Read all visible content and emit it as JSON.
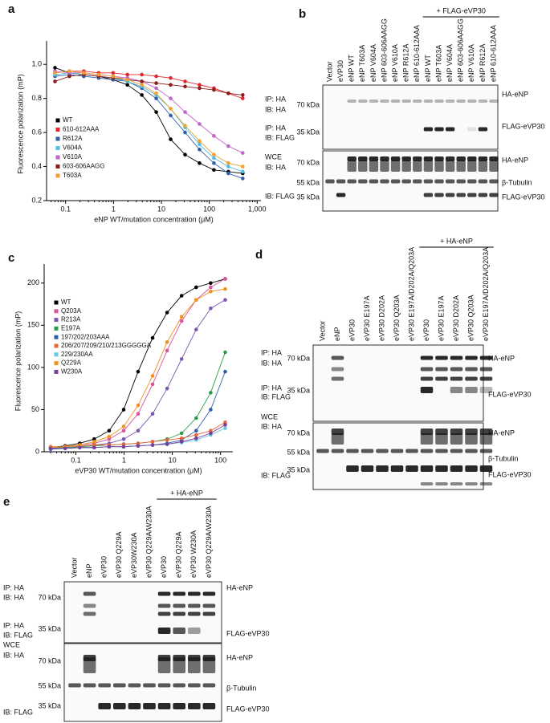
{
  "panel_labels": [
    "a",
    "b",
    "c",
    "d",
    "e"
  ],
  "chart_data": [
    {
      "type": "line",
      "xlabel": "eNP WT/mutation concentration (μM)",
      "ylabel": "Fluorescence polarization (mP)",
      "log_x": true,
      "xlim": [
        0.04,
        1200
      ],
      "ylim": [
        0.2,
        1.1
      ],
      "xticks": [
        0.1,
        1,
        10,
        100,
        {
          "value": 1000,
          "label": "1,000"
        }
      ],
      "yticks": [
        0.2,
        0.4,
        0.6,
        0.8,
        {
          "value": 1,
          "label": "1.0"
        }
      ],
      "x": [
        0.06,
        0.12,
        0.24,
        0.49,
        0.98,
        1.95,
        3.9,
        7.8,
        15.6,
        31.25,
        62.5,
        125,
        250,
        500
      ],
      "series": [
        {
          "name": "WT",
          "color": "#000000",
          "values": [
            0.98,
            0.95,
            0.94,
            0.93,
            0.91,
            0.88,
            0.82,
            0.72,
            0.56,
            0.47,
            0.42,
            0.38,
            0.37,
            0.36
          ]
        },
        {
          "name": "610-612AAA",
          "color": "#e3262b",
          "values": [
            0.95,
            0.96,
            0.96,
            0.95,
            0.95,
            0.94,
            0.94,
            0.93,
            0.92,
            0.9,
            0.88,
            0.86,
            0.83,
            0.8
          ]
        },
        {
          "name": "R612A",
          "color": "#2f5fa8",
          "values": [
            0.93,
            0.94,
            0.93,
            0.92,
            0.91,
            0.9,
            0.86,
            0.8,
            0.7,
            0.6,
            0.5,
            0.42,
            0.36,
            0.33
          ]
        },
        {
          "name": "V604A",
          "color": "#4fc0e0",
          "values": [
            0.94,
            0.95,
            0.94,
            0.93,
            0.92,
            0.9,
            0.87,
            0.82,
            0.74,
            0.63,
            0.53,
            0.45,
            0.4,
            0.37
          ]
        },
        {
          "name": "V610A",
          "color": "#c064c8",
          "values": [
            0.96,
            0.95,
            0.95,
            0.94,
            0.93,
            0.92,
            0.9,
            0.86,
            0.8,
            0.72,
            0.65,
            0.58,
            0.52,
            0.48
          ]
        },
        {
          "name": "603-606AAGG",
          "color": "#8b1a1a",
          "values": [
            0.9,
            0.93,
            0.94,
            0.93,
            0.92,
            0.91,
            0.9,
            0.89,
            0.88,
            0.87,
            0.86,
            0.85,
            0.83,
            0.82
          ]
        },
        {
          "name": "T603A",
          "color": "#f0a030",
          "values": [
            0.95,
            0.96,
            0.95,
            0.94,
            0.93,
            0.91,
            0.88,
            0.83,
            0.74,
            0.64,
            0.55,
            0.47,
            0.42,
            0.4
          ]
        }
      ]
    },
    {
      "type": "line",
      "xlabel": "eVP30 WT/mutation concentration (μM)",
      "ylabel": "Fluorescence polarization (mP)",
      "log_x": true,
      "xlim": [
        0.022,
        180
      ],
      "ylim": [
        0,
        215
      ],
      "xticks": [
        0.1,
        1,
        10,
        100
      ],
      "yticks": [
        0,
        50,
        100,
        150,
        200
      ],
      "x": [
        0.03,
        0.06,
        0.12,
        0.24,
        0.49,
        0.98,
        1.95,
        3.9,
        7.8,
        15.6,
        31.25,
        62.5,
        125
      ],
      "series": [
        {
          "name": "WT",
          "color": "#000000",
          "values": [
            5,
            7,
            10,
            15,
            25,
            50,
            95,
            135,
            165,
            185,
            195,
            200,
            205
          ]
        },
        {
          "name": "Q203A",
          "color": "#d8559e",
          "values": [
            5,
            6,
            8,
            10,
            15,
            25,
            45,
            80,
            120,
            155,
            180,
            195,
            205
          ]
        },
        {
          "name": "R213A",
          "color": "#7b58b0",
          "values": [
            4,
            5,
            6,
            8,
            10,
            15,
            25,
            45,
            75,
            110,
            145,
            170,
            180
          ]
        },
        {
          "name": "E197A",
          "color": "#2a9d4a",
          "values": [
            5,
            5,
            6,
            7,
            8,
            9,
            10,
            12,
            15,
            22,
            40,
            70,
            118
          ]
        },
        {
          "name": "197/202/203AAA",
          "color": "#2f5fa8",
          "values": [
            3,
            4,
            5,
            5,
            6,
            6,
            7,
            8,
            10,
            14,
            25,
            50,
            95
          ]
        },
        {
          "name": "206/207/209/210/213GGGGGA",
          "color": "#e8663a",
          "values": [
            6,
            6,
            7,
            8,
            8,
            9,
            10,
            12,
            14,
            16,
            20,
            25,
            35
          ]
        },
        {
          "name": "229/230AA",
          "color": "#6cc6e0",
          "values": [
            4,
            4,
            5,
            5,
            6,
            6,
            7,
            8,
            9,
            11,
            14,
            20,
            28
          ]
        },
        {
          "name": "Q229A",
          "color": "#f0901e",
          "values": [
            5,
            6,
            8,
            12,
            18,
            30,
            55,
            90,
            130,
            160,
            180,
            190,
            193
          ]
        },
        {
          "name": "W230A",
          "color": "#7a3d9a",
          "values": [
            4,
            4,
            5,
            5,
            6,
            6,
            7,
            8,
            9,
            12,
            16,
            22,
            32
          ]
        }
      ]
    }
  ],
  "blots": [
    {
      "lanes": [
        "Vector",
        "eVP30",
        "eNP WT",
        "eNP T603A",
        "eNP V604A",
        "eNP 603-606AAGG",
        "eNP V610A",
        "eNP R612A",
        "eNP 610-612AAA",
        "eNP WT",
        "eNP T603A",
        "eNP V604A",
        "eNP 603-606AAGG",
        "eNP V610A",
        "eNP R612A",
        "eNP 610-612AAA"
      ],
      "group_label": "+ FLAG-eVP30",
      "left_labels": [
        "IP: HA",
        "IB: HA",
        "IP: HA",
        "IB: FLAG",
        "WCE",
        "IB: HA",
        "IB: FLAG"
      ],
      "markers": [
        "70 kDa",
        "35 kDa",
        "70 kDa",
        "55 kDa",
        "35 kDa"
      ],
      "right_labels": [
        "HA-eNP",
        "FLAG-eVP30",
        "HA-eNP",
        "β-Tubulin",
        "FLAG-eVP30"
      ]
    },
    {
      "lanes": [
        "Vector",
        "eNP",
        "eVP30",
        "eVP30 E197A",
        "eVP30 D202A",
        "eVP30 Q203A",
        "eVP30 E197A/D202A/Q203A",
        "eVP30",
        "eVP30 E197A",
        "eVP30 D202A",
        "eVP30 Q203A",
        "eVP30 E197A/D202A/Q203A"
      ],
      "group_label": "+ HA-eNP",
      "left_labels": [
        "IP: HA",
        "IB: HA",
        "IP: HA",
        "IB: FLAG",
        "WCE",
        "IB: HA",
        "IB: FLAG"
      ],
      "markers": [
        "70 kDa",
        "35 kDa",
        "70 kDa",
        "55 kDa",
        "35 kDa"
      ],
      "right_labels": [
        "HA-eNP",
        "FLAG-eVP30",
        "HA-eNP",
        "β-Tubulin",
        "FLAG-eVP30"
      ]
    },
    {
      "lanes": [
        "Vector",
        "eNP",
        "eVP30",
        "eVP30 Q229A",
        "eVP30W230A",
        "eVP30 Q229A/W230A",
        "eVP30",
        "eVP30 Q229A",
        "eVP30 W230A",
        "eVP30 Q229A/W230A"
      ],
      "group_label": "+ HA-eNP",
      "left_labels": [
        "IP: HA",
        "IB: HA",
        "IP: HA",
        "IB: FLAG",
        "WCE",
        "IB: HA",
        "IB: FLAG"
      ],
      "markers": [
        "70 kDa",
        "35 kDa",
        "70 kDa",
        "55 kDa",
        "35 kDa"
      ],
      "right_labels": [
        "HA-eNP",
        "FLAG-eVP30",
        "HA-eNP",
        "β-Tubulin",
        "FLAG-eVP30"
      ]
    }
  ]
}
